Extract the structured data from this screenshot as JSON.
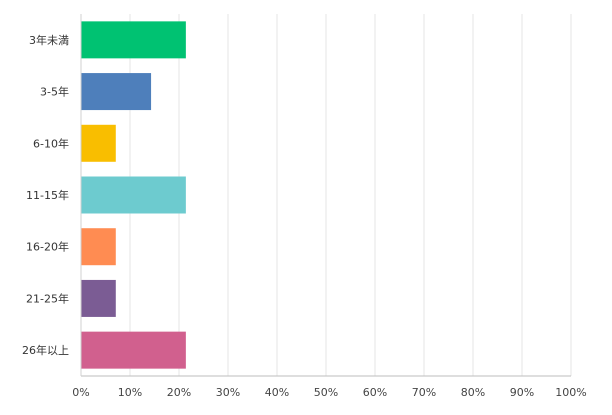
{
  "chart_data": {
    "type": "bar",
    "orientation": "horizontal",
    "categories": [
      "3年未満",
      "3-5年",
      "6-10年",
      "11-15年",
      "16-20年",
      "21-25年",
      "26年以上"
    ],
    "values": [
      21.4,
      14.3,
      7.1,
      21.4,
      7.1,
      7.1,
      21.4
    ],
    "colors": [
      "#00C272",
      "#4E7FBB",
      "#F9BE00",
      "#6DCBCF",
      "#FF8C52",
      "#7B5C94",
      "#D1608E"
    ],
    "xlim": [
      0,
      100
    ],
    "x_ticks": [
      "0%",
      "10%",
      "20%",
      "30%",
      "40%",
      "50%",
      "60%",
      "70%",
      "80%",
      "90%",
      "100%"
    ],
    "grid": true,
    "title": "",
    "xlabel": "",
    "ylabel": ""
  }
}
